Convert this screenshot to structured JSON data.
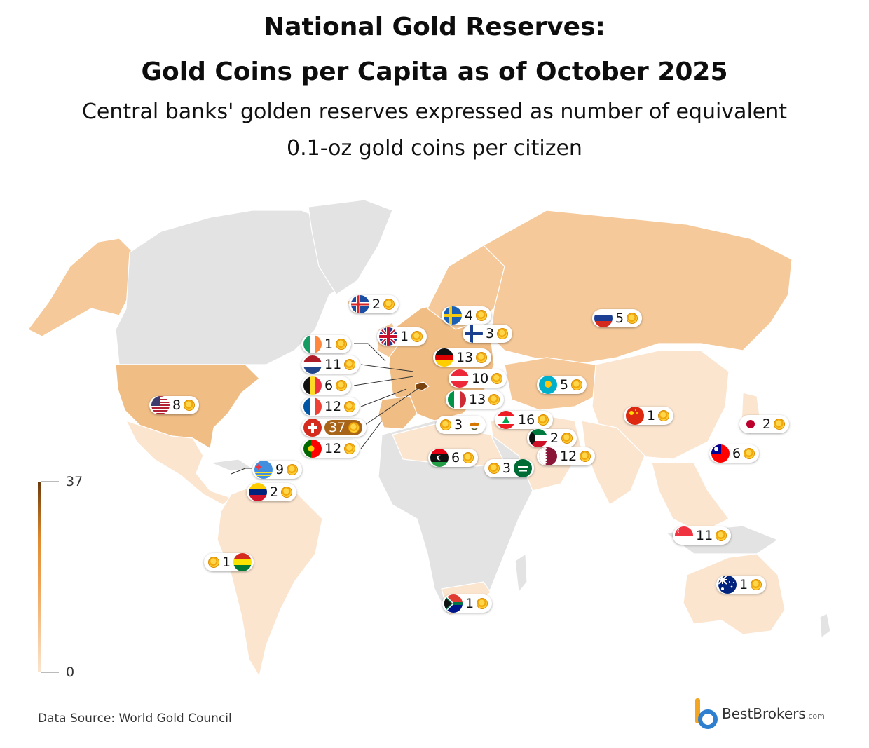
{
  "title_line1": "National Gold Reserves:",
  "title_line2": "Gold Coins per Capita as of October 2025",
  "subtitle_line1": "Central banks' golden reserves expressed as number of equivalent",
  "subtitle_line2": "0.1-oz gold coins per citizen",
  "legend": {
    "max": "37",
    "min": "0",
    "colors": [
      "#fbe5cf",
      "#f0a55a",
      "#e08a2e",
      "#6b3a0c"
    ]
  },
  "source": "Data Source: World Gold Council",
  "brand": {
    "name": "BestBrokers",
    "suffix": ".com",
    "color_a": "#f2a623",
    "color_b": "#2f7fd1"
  },
  "colors": {
    "no_data": "#e3e3e3",
    "low": "#fbe5cf",
    "mid": "#f5c999",
    "high": "#e9a45e",
    "top": "#a8651a"
  },
  "countries": [
    {
      "code": "is",
      "name": "Iceland",
      "value": "2"
    },
    {
      "code": "se",
      "name": "Sweden",
      "value": "4"
    },
    {
      "code": "gb",
      "name": "United Kingdom",
      "value": "1"
    },
    {
      "code": "fi",
      "name": "Finland",
      "value": "3"
    },
    {
      "code": "ru",
      "name": "Russia",
      "value": "5"
    },
    {
      "code": "ie",
      "name": "Ireland",
      "value": "1"
    },
    {
      "code": "de",
      "name": "Germany",
      "value": "13"
    },
    {
      "code": "nl",
      "name": "Netherlands",
      "value": "11"
    },
    {
      "code": "at",
      "name": "Austria",
      "value": "10"
    },
    {
      "code": "be",
      "name": "Belgium",
      "value": "6"
    },
    {
      "code": "kz",
      "name": "Kazakhstan",
      "value": "5"
    },
    {
      "code": "us",
      "name": "United States",
      "value": "8"
    },
    {
      "code": "fr",
      "name": "France",
      "value": "12"
    },
    {
      "code": "it",
      "name": "Italy",
      "value": "13"
    },
    {
      "code": "ch",
      "name": "Switzerland",
      "value": "37"
    },
    {
      "code": "cy",
      "name": "Cyprus",
      "value": "3"
    },
    {
      "code": "lb",
      "name": "Lebanon",
      "value": "16"
    },
    {
      "code": "cn",
      "name": "China",
      "value": "1"
    },
    {
      "code": "jp",
      "name": "Japan",
      "value": "2"
    },
    {
      "code": "pt",
      "name": "Portugal",
      "value": "12"
    },
    {
      "code": "kw",
      "name": "Kuwait",
      "value": "2"
    },
    {
      "code": "ly",
      "name": "Libya",
      "value": "6"
    },
    {
      "code": "qa",
      "name": "Qatar",
      "value": "12"
    },
    {
      "code": "tw",
      "name": "Taiwan",
      "value": "6"
    },
    {
      "code": "aw",
      "name": "Aruba",
      "value": "9"
    },
    {
      "code": "sa",
      "name": "Saudi Arabia",
      "value": "3"
    },
    {
      "code": "ve",
      "name": "Venezuela",
      "value": "2"
    },
    {
      "code": "sg",
      "name": "Singapore",
      "value": "11"
    },
    {
      "code": "bo",
      "name": "Bolivia",
      "value": "1"
    },
    {
      "code": "au",
      "name": "Australia",
      "value": "1"
    },
    {
      "code": "za",
      "name": "South Africa",
      "value": "1"
    }
  ]
}
